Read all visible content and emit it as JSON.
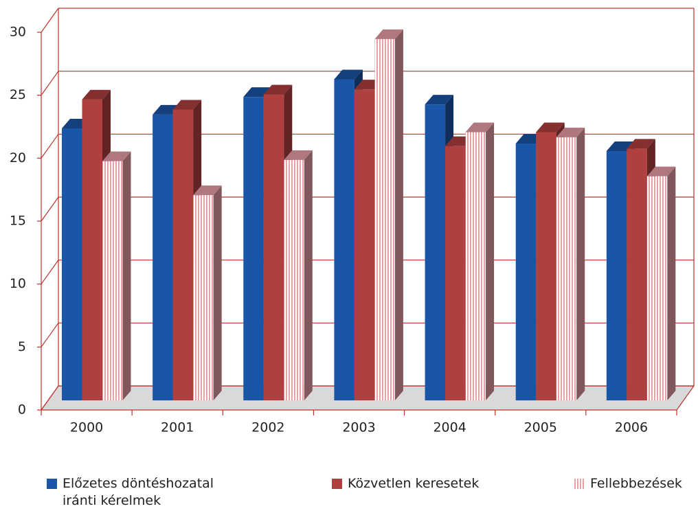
{
  "chart_data": {
    "type": "bar3d",
    "categories": [
      "2000",
      "2001",
      "2002",
      "2003",
      "2004",
      "2005",
      "2006"
    ],
    "series": [
      {
        "name": "Előzetes döntéshozatal iránti kérelmek",
        "color": "#1a56a8",
        "values": [
          21.6,
          22.7,
          24.1,
          25.5,
          23.5,
          20.4,
          19.8
        ]
      },
      {
        "name": "Közvetlen keresetek",
        "color": "#b04040",
        "values": [
          23.9,
          23.1,
          24.3,
          24.7,
          20.2,
          21.3,
          20.0
        ]
      },
      {
        "name": "Fellebbezések",
        "color": "#e8a0a8",
        "pattern": "stripes",
        "values": [
          19.0,
          16.3,
          19.1,
          28.7,
          21.3,
          20.9,
          17.8
        ]
      }
    ],
    "ylim": [
      0,
      30
    ],
    "yticks": [
      0,
      5,
      10,
      15,
      20,
      25,
      30
    ],
    "grid": true
  }
}
